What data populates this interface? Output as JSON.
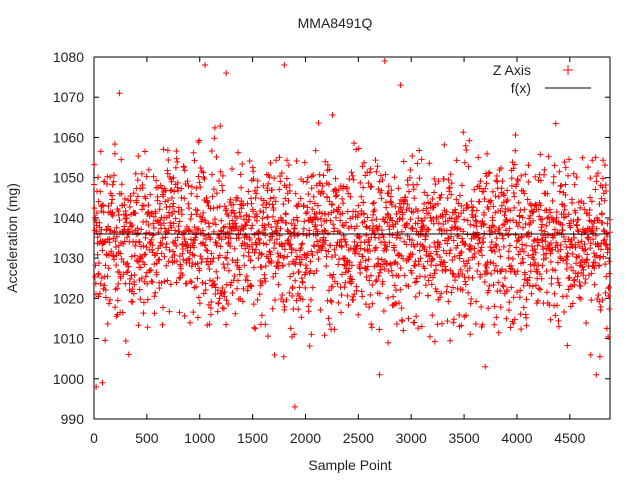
{
  "chart_data": {
    "type": "scatter",
    "title": "MMA8491Q",
    "xlabel": "Sample Point",
    "ylabel": "Acceleration (mg)",
    "xlim": [
      0,
      4880
    ],
    "ylim": [
      990,
      1080
    ],
    "xticks": [
      0,
      500,
      1000,
      1500,
      2000,
      2500,
      3000,
      3500,
      4000,
      4500
    ],
    "yticks": [
      990,
      1000,
      1010,
      1020,
      1030,
      1040,
      1050,
      1060,
      1070,
      1080
    ],
    "grid": false,
    "legend_position": "top-right",
    "colors": {
      "series": "#ff0000",
      "fit": "#000000"
    },
    "series": [
      {
        "name": "Z Axis",
        "marker": "+",
        "n_points": 4880,
        "center": 1035,
        "note_points": [
          {
            "x": 20,
            "y": 998
          },
          {
            "x": 80,
            "y": 999
          },
          {
            "x": 240,
            "y": 1071
          },
          {
            "x": 1050,
            "y": 1078
          },
          {
            "x": 1250,
            "y": 1076
          },
          {
            "x": 1800,
            "y": 1078
          },
          {
            "x": 1900,
            "y": 993
          },
          {
            "x": 2750,
            "y": 1079
          },
          {
            "x": 2900,
            "y": 1073
          },
          {
            "x": 2700,
            "y": 1001
          },
          {
            "x": 3700,
            "y": 1003
          },
          {
            "x": 4750,
            "y": 1001
          }
        ]
      },
      {
        "name": "f(x)",
        "type": "line",
        "y": 1036
      }
    ]
  }
}
